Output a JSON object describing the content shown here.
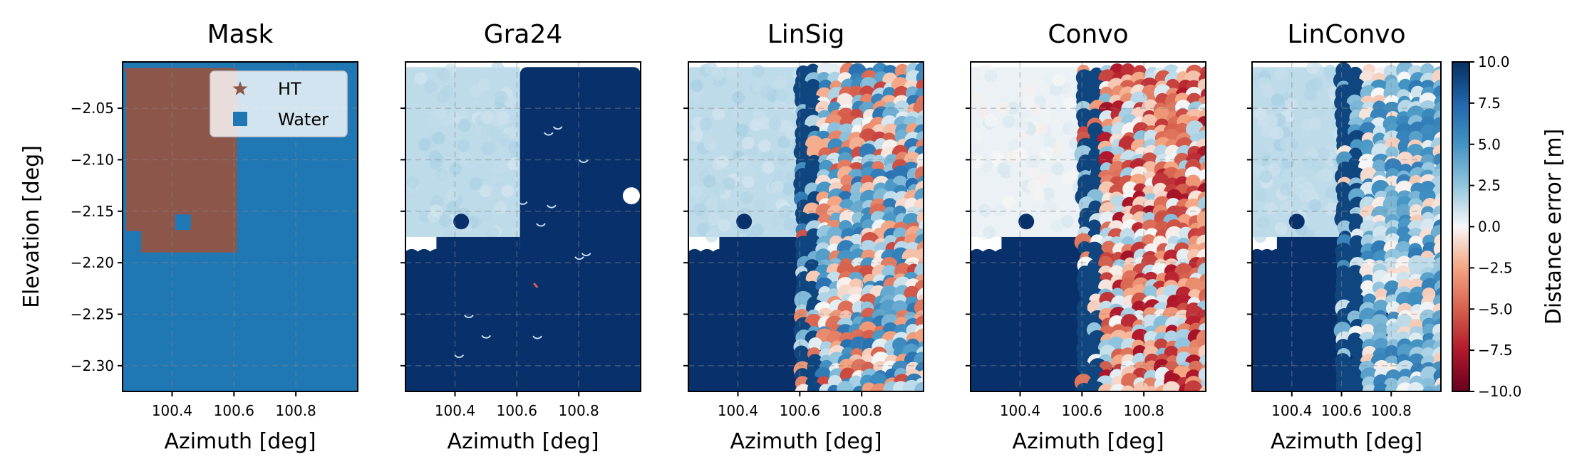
{
  "chart_data": {
    "type": "scatter",
    "panels": [
      {
        "id": "mask",
        "title": "Mask",
        "xlabel": "Azimuth [deg]",
        "ylabel": "Elevation [deg]"
      },
      {
        "id": "gra24",
        "title": "Gra24",
        "xlabel": "Azimuth [deg]",
        "ylabel": ""
      },
      {
        "id": "linsig",
        "title": "LinSig",
        "xlabel": "Azimuth [deg]",
        "ylabel": ""
      },
      {
        "id": "convo",
        "title": "Convo",
        "xlabel": "Azimuth [deg]",
        "ylabel": ""
      },
      {
        "id": "linconvo",
        "title": "LinConvo",
        "xlabel": "Azimuth [deg]",
        "ylabel": ""
      }
    ],
    "xlim": [
      100.24,
      101.0
    ],
    "ylim": [
      -2.325,
      -2.005
    ],
    "xticks": [
      100.4,
      100.6,
      100.8
    ],
    "xtick_labels": [
      "100.4",
      "100.6",
      "100.8"
    ],
    "yticks": [
      -2.05,
      -2.1,
      -2.15,
      -2.2,
      -2.25,
      -2.3
    ],
    "ytick_labels": [
      "−2.05",
      "−2.10",
      "−2.15",
      "−2.20",
      "−2.25",
      "−2.30"
    ],
    "grid": true,
    "mask": {
      "legend": {
        "placement": "top-right",
        "entries": [
          {
            "label": "HT",
            "marker": "star",
            "color": "#8c564b"
          },
          {
            "label": "Water",
            "marker": "square",
            "color": "#1f77b4"
          }
        ]
      },
      "ht_region": {
        "x": [
          100.24,
          100.61
        ],
        "y": [
          -2.19,
          -2.005
        ]
      },
      "water_region": {
        "x": [
          100.24,
          101.0
        ],
        "y": [
          -2.325,
          -2.005
        ]
      }
    },
    "colorbar": {
      "label": "Distance error [m]",
      "range": [
        -10.0,
        10.0
      ],
      "ticks": [
        10.0,
        7.5,
        5.0,
        2.5,
        0.0,
        -2.5,
        -5.0,
        -7.5,
        -10.0
      ],
      "tick_labels": [
        "10.0",
        "7.5",
        "5.0",
        "2.5",
        "0.0",
        "−2.5",
        "−5.0",
        "−7.5",
        "−10.0"
      ],
      "colormap": "RdBu"
    },
    "colors": {
      "ht": "#8c564b",
      "water": "#1f77b4",
      "saturated": "#08306b"
    }
  }
}
